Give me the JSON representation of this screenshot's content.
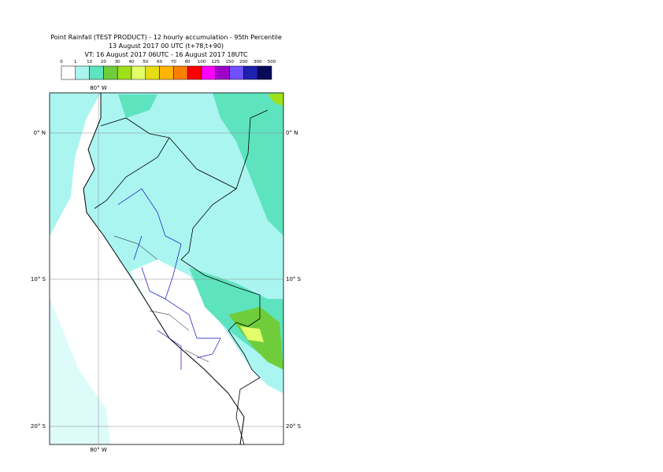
{
  "header": {
    "title": "Point Rainfall (TEST PRODUCT) - 12 hourly accumulation - 95th Percentile",
    "subtitle": "13 August 2017 00 UTC (t+78,t+90)",
    "valid_time": "VT: 16 August 2017 06UTC - 16 August 2017 18UTC"
  },
  "legend": {
    "labels": [
      "0",
      "1",
      "10",
      "20",
      "30",
      "40",
      "50",
      "60",
      "70",
      "80",
      "100",
      "125",
      "150",
      "200",
      "300",
      "500"
    ],
    "colors": [
      "#ffffff",
      "#aaf5f0",
      "#5ee3bf",
      "#6fcd3c",
      "#9fe01a",
      "#e2ff6a",
      "#e6dc14",
      "#ffb400",
      "#ff7f00",
      "#ff0000",
      "#ff00ff",
      "#a000c8",
      "#7050ff",
      "#2020b0",
      "#0a0a5a"
    ]
  },
  "map": {
    "lon_top": "80° W",
    "lon_bottom": "80° W",
    "lat_left": [
      "0° N",
      "10° S",
      "20° S"
    ],
    "lat_right": [
      "0° N",
      "10° S",
      "20° S"
    ]
  }
}
